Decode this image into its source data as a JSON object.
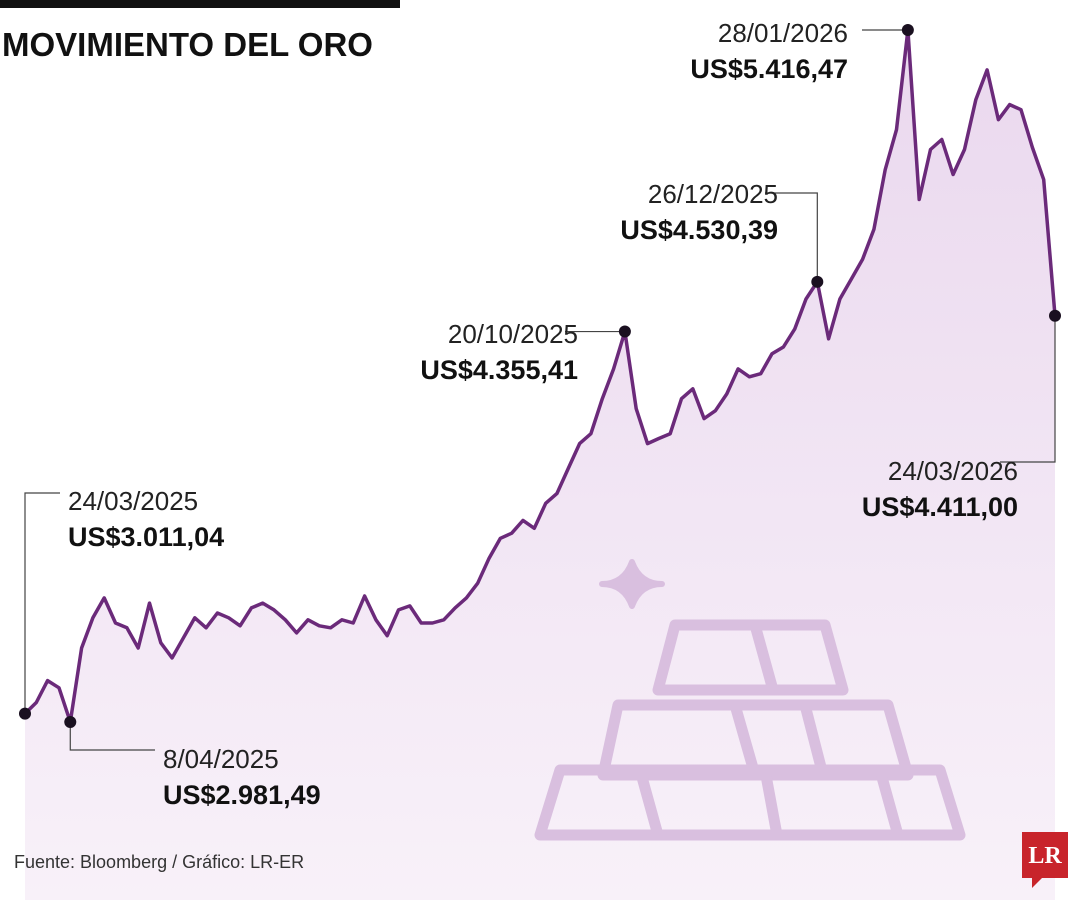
{
  "chart_data": {
    "type": "line",
    "title": "MOVIMIENTO DEL ORO",
    "source": "Fuente: Bloomberg / Gráfico: LR-ER",
    "logo": "LR",
    "color": "#6b2a7a",
    "categories": [
      "24/03/2025",
      null,
      null,
      null,
      "8/04/2025",
      null,
      null,
      null,
      null,
      null,
      null,
      null,
      null,
      null,
      null,
      null,
      null,
      null,
      null,
      null,
      null,
      null,
      null,
      null,
      null,
      null,
      null,
      null,
      null,
      null,
      null,
      null,
      null,
      null,
      null,
      null,
      null,
      null,
      null,
      null,
      null,
      null,
      null,
      null,
      null,
      null,
      null,
      null,
      null,
      null,
      null,
      null,
      null,
      "20/10/2025",
      null,
      null,
      null,
      null,
      null,
      null,
      null,
      null,
      null,
      null,
      null,
      null,
      null,
      null,
      null,
      null,
      "26/12/2025",
      null,
      null,
      null,
      null,
      null,
      null,
      null,
      "28/01/2026",
      null,
      null,
      null,
      null,
      null,
      null,
      null,
      null,
      null,
      null,
      null,
      null,
      "24/03/2026"
    ],
    "values": [
      3011.04,
      3050,
      3127,
      3102,
      2981.49,
      3242,
      3348,
      3418,
      3330,
      3313,
      3242,
      3400,
      3260,
      3207,
      3278,
      3348,
      3313,
      3365,
      3348,
      3320,
      3383,
      3400,
      3376,
      3341,
      3295,
      3341,
      3320,
      3313,
      3341,
      3330,
      3425,
      3341,
      3285,
      3376,
      3390,
      3330,
      3330,
      3341,
      3383,
      3418,
      3470,
      3558,
      3628,
      3646,
      3691,
      3663,
      3751,
      3786,
      3874,
      3961,
      3996,
      4119,
      4224,
      4355.41,
      4084,
      3961,
      3979,
      3996,
      4119,
      4154,
      4049,
      4077,
      4136,
      4224,
      4196,
      4207,
      4277,
      4301,
      4364,
      4470,
      4530.39,
      4330,
      4470,
      4540,
      4610,
      4715,
      4925,
      5066,
      5416.47,
      4820,
      4996,
      5031,
      4908,
      4996,
      5171,
      5276,
      5101,
      5154,
      5136,
      5003,
      4890,
      4411.0
    ],
    "value_labels": [
      "US$3.011,04",
      null,
      null,
      null,
      "US$2.981,49",
      null,
      null,
      null,
      null,
      null,
      null,
      null,
      null,
      null,
      null,
      null,
      null,
      null,
      null,
      null,
      null,
      null,
      null,
      null,
      null,
      null,
      null,
      null,
      null,
      null,
      null,
      null,
      null,
      null,
      null,
      null,
      null,
      null,
      null,
      null,
      null,
      null,
      null,
      null,
      null,
      null,
      null,
      null,
      null,
      null,
      null,
      null,
      null,
      "US$4.355,41",
      null,
      null,
      null,
      null,
      null,
      null,
      null,
      null,
      null,
      null,
      null,
      null,
      null,
      null,
      null,
      null,
      "US$4.530,39",
      null,
      null,
      null,
      null,
      null,
      null,
      null,
      "US$5.416,47",
      null,
      null,
      null,
      null,
      null,
      null,
      null,
      null,
      null,
      null,
      null,
      null,
      "US$4.411,00"
    ]
  }
}
